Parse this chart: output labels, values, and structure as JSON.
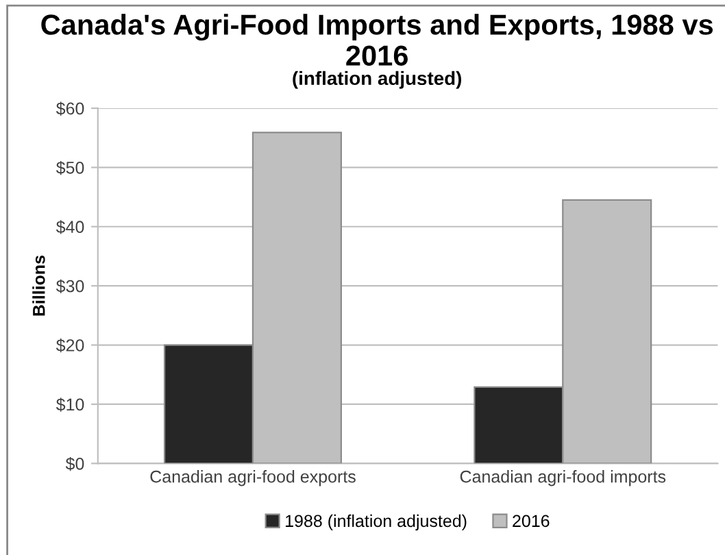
{
  "chart_data": {
    "type": "bar",
    "title": "Canada's Agri-Food Imports and Exports, 1988 vs 2016",
    "subtitle": "(inflation adjusted)",
    "ylabel": "Billions",
    "categories": [
      "Canadian agri-food exports",
      "Canadian agri-food imports"
    ],
    "series": [
      {
        "name": "1988 (inflation adjusted)",
        "color": "#262626",
        "values": [
          20,
          12.9
        ]
      },
      {
        "name": "2016",
        "color": "#bfbfbf",
        "values": [
          55.9,
          44.5
        ]
      }
    ],
    "ylim": [
      0,
      60
    ],
    "yticks": [
      {
        "value": 0,
        "label": "$0"
      },
      {
        "value": 10,
        "label": "$10"
      },
      {
        "value": 20,
        "label": "$20"
      },
      {
        "value": 30,
        "label": "$30"
      },
      {
        "value": 40,
        "label": "$40"
      },
      {
        "value": 50,
        "label": "$50"
      },
      {
        "value": 60,
        "label": "$60"
      }
    ],
    "grid": "y",
    "legend": "bottom"
  }
}
